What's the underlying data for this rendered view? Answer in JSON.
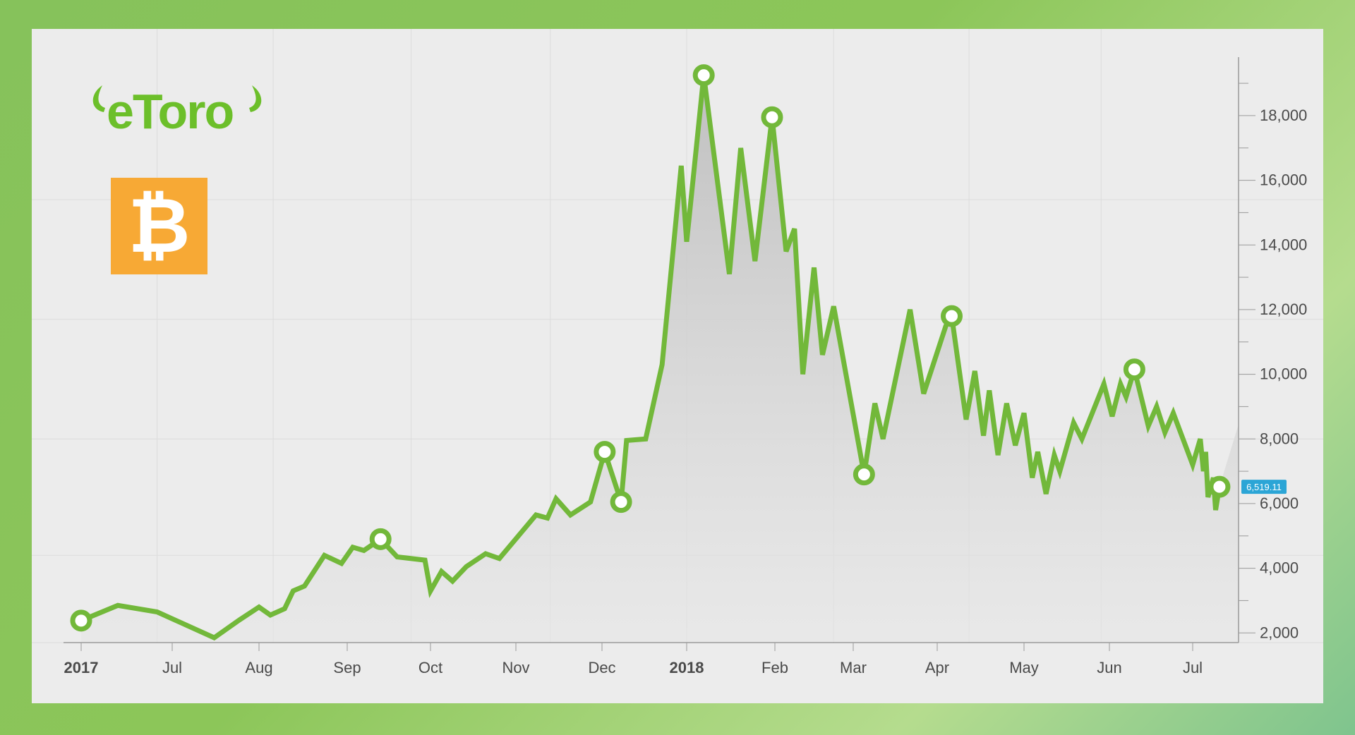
{
  "brand": {
    "logo_text": "eToro",
    "asset_icon": "bitcoin-icon",
    "asset_symbol": "B"
  },
  "colors": {
    "line": "#72b83a",
    "area": "#c8c8c8",
    "brand_green": "#6cbf2a",
    "bitcoin_orange": "#f7a935",
    "price_tag": "#2ba5d6"
  },
  "current_price_label": "6,519.11",
  "chart_data": {
    "type": "line",
    "title": "",
    "xlabel": "",
    "ylabel": "",
    "ylim": [
      1700,
      19700
    ],
    "y_ticks": [
      2000,
      4000,
      6000,
      8000,
      10000,
      12000,
      14000,
      16000,
      18000
    ],
    "y_tick_labels": [
      "2,000",
      "4,000",
      "6,000",
      "8,000",
      "10,000",
      "12,000",
      "14,000",
      "16,000",
      "18,000"
    ],
    "x_ticks": [
      {
        "date": "2017-01-01",
        "label": "2017",
        "bold": true
      },
      {
        "date": "2017-07-01",
        "label": "Jul",
        "bold": false
      },
      {
        "date": "2017-08-01",
        "label": "Aug",
        "bold": false
      },
      {
        "date": "2017-09-01",
        "label": "Sep",
        "bold": false
      },
      {
        "date": "2017-10-01",
        "label": "Oct",
        "bold": false
      },
      {
        "date": "2017-11-01",
        "label": "Nov",
        "bold": false
      },
      {
        "date": "2017-12-01",
        "label": "Dec",
        "bold": false
      },
      {
        "date": "2018-01-01",
        "label": "2018",
        "bold": true
      },
      {
        "date": "2018-02-01",
        "label": "Feb",
        "bold": false
      },
      {
        "date": "2018-03-01",
        "label": "Mar",
        "bold": false
      },
      {
        "date": "2018-04-01",
        "label": "Apr",
        "bold": false
      },
      {
        "date": "2018-05-01",
        "label": "May",
        "bold": false
      },
      {
        "date": "2018-06-01",
        "label": "Jun",
        "bold": false
      },
      {
        "date": "2018-07-01",
        "label": "Jul",
        "bold": false
      }
    ],
    "series": [
      {
        "points": [
          [
            "2017-01-01",
            2380
          ],
          [
            "2017-03-15",
            2850
          ],
          [
            "2017-06-01",
            2650
          ],
          [
            "2017-07-16",
            1850
          ],
          [
            "2017-07-25",
            2400
          ],
          [
            "2017-08-01",
            2800
          ],
          [
            "2017-08-05",
            2550
          ],
          [
            "2017-08-10",
            2750
          ],
          [
            "2017-08-13",
            3300
          ],
          [
            "2017-08-17",
            3450
          ],
          [
            "2017-08-24",
            4400
          ],
          [
            "2017-08-30",
            4150
          ],
          [
            "2017-09-03",
            4650
          ],
          [
            "2017-09-07",
            4550
          ],
          [
            "2017-09-13",
            4900
          ],
          [
            "2017-09-19",
            4350
          ],
          [
            "2017-09-29",
            4250
          ],
          [
            "2017-10-01",
            3300
          ],
          [
            "2017-10-05",
            3900
          ],
          [
            "2017-10-09",
            3600
          ],
          [
            "2017-10-14",
            4050
          ],
          [
            "2017-10-21",
            4450
          ],
          [
            "2017-10-26",
            4300
          ],
          [
            "2017-11-08",
            5650
          ],
          [
            "2017-11-12",
            5550
          ],
          [
            "2017-11-15",
            6150
          ],
          [
            "2017-11-20",
            5650
          ],
          [
            "2017-11-27",
            6050
          ],
          [
            "2017-12-02",
            7600
          ],
          [
            "2017-12-08",
            6050
          ],
          [
            "2017-12-10",
            7950
          ],
          [
            "2017-12-17",
            8000
          ],
          [
            "2017-12-23",
            10300
          ],
          [
            "2017-12-30",
            16450
          ],
          [
            "2018-01-01",
            14100
          ],
          [
            "2018-01-07",
            19250
          ],
          [
            "2018-01-16",
            13100
          ],
          [
            "2018-01-20",
            17000
          ],
          [
            "2018-01-25",
            13500
          ],
          [
            "2018-01-31",
            17950
          ],
          [
            "2018-02-05",
            13800
          ],
          [
            "2018-02-08",
            14500
          ],
          [
            "2018-02-11",
            10000
          ],
          [
            "2018-02-15",
            13300
          ],
          [
            "2018-02-18",
            10600
          ],
          [
            "2018-02-22",
            12100
          ],
          [
            "2018-03-05",
            6900
          ],
          [
            "2018-03-09",
            9100
          ],
          [
            "2018-03-12",
            8000
          ],
          [
            "2018-03-22",
            12000
          ],
          [
            "2018-03-27",
            9400
          ],
          [
            "2018-04-04",
            11500
          ],
          [
            "2018-04-06",
            11800
          ],
          [
            "2018-04-11",
            8600
          ],
          [
            "2018-04-14",
            10100
          ],
          [
            "2018-04-17",
            8100
          ],
          [
            "2018-04-19",
            9500
          ],
          [
            "2018-04-22",
            7500
          ],
          [
            "2018-04-25",
            9100
          ],
          [
            "2018-04-28",
            7800
          ],
          [
            "2018-05-01",
            8800
          ],
          [
            "2018-05-04",
            6800
          ],
          [
            "2018-05-06",
            7600
          ],
          [
            "2018-05-09",
            6300
          ],
          [
            "2018-05-12",
            7500
          ],
          [
            "2018-05-14",
            7000
          ],
          [
            "2018-05-19",
            8500
          ],
          [
            "2018-05-22",
            8000
          ],
          [
            "2018-05-30",
            9700
          ],
          [
            "2018-06-02",
            8700
          ],
          [
            "2018-06-05",
            9700
          ],
          [
            "2018-06-07",
            9300
          ],
          [
            "2018-06-10",
            10150
          ],
          [
            "2018-06-15",
            8400
          ],
          [
            "2018-06-18",
            9000
          ],
          [
            "2018-06-21",
            8200
          ],
          [
            "2018-06-24",
            8800
          ],
          [
            "2018-06-31",
            7200
          ],
          [
            "2018-07-11",
            8000
          ],
          [
            "2018-07-15",
            7000
          ],
          [
            "2018-07-18",
            7600
          ],
          [
            "2018-07-21",
            6200
          ],
          [
            "2018-07-28",
            6800
          ],
          [
            "2018-07-31",
            5800
          ],
          [
            "2018-08-05",
            6519.11
          ]
        ],
        "markers": [
          [
            "2017-01-01",
            2380
          ],
          [
            "2017-09-13",
            4900
          ],
          [
            "2017-12-02",
            7600
          ],
          [
            "2017-12-08",
            6050
          ],
          [
            "2018-01-07",
            19250
          ],
          [
            "2018-01-31",
            17950
          ],
          [
            "2018-03-05",
            6900
          ],
          [
            "2018-04-06",
            11800
          ],
          [
            "2018-06-10",
            10150
          ],
          [
            "2018-08-05",
            6519.11
          ]
        ]
      }
    ],
    "area_extension_to": [
      "2018-08-30",
      8450
    ],
    "grid": true,
    "legend": "none"
  }
}
